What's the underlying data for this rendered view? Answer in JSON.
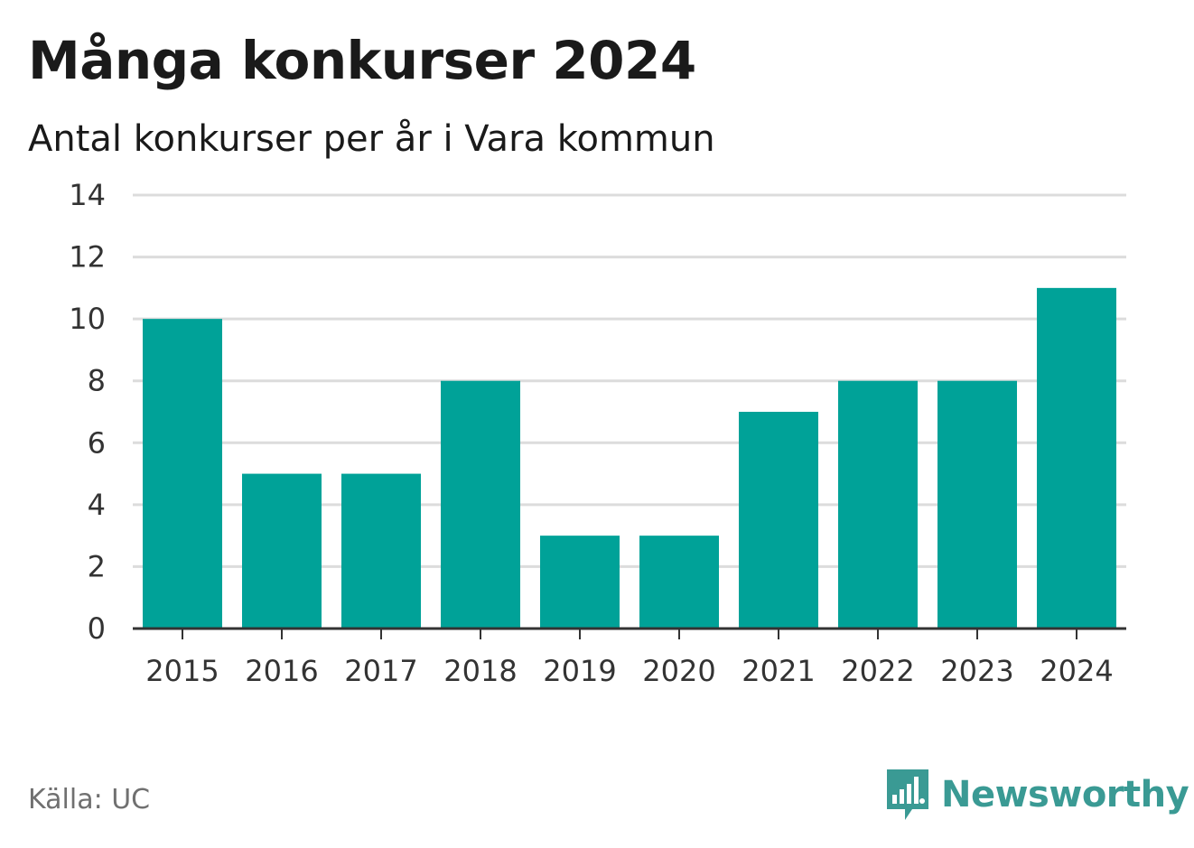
{
  "chart_data": {
    "type": "bar",
    "title": "Många konkurser 2024",
    "subtitle": "Antal konkurser per år i Vara kommun",
    "categories": [
      "2015",
      "2016",
      "2017",
      "2018",
      "2019",
      "2020",
      "2021",
      "2022",
      "2023",
      "2024"
    ],
    "values": [
      10,
      5,
      5,
      8,
      3,
      3,
      7,
      8,
      8,
      11
    ],
    "ylim": [
      0,
      14
    ],
    "yticks": [
      "0",
      "2",
      "4",
      "6",
      "8",
      "10",
      "12",
      "14"
    ],
    "bar_color": "#00a298",
    "grid": true,
    "xlabel": "",
    "ylabel": ""
  },
  "source": "Källa: UC",
  "brand": {
    "name": "Newsworthy",
    "icon": "newsworthy-logo-icon",
    "color": "#3a9a94"
  }
}
